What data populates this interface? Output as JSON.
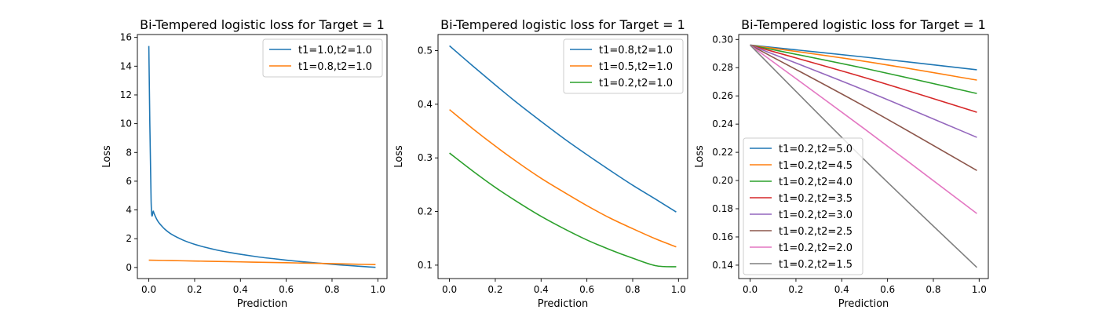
{
  "palette": [
    "#1f77b4",
    "#ff7f0e",
    "#2ca02c",
    "#d62728",
    "#9467bd",
    "#8c564b",
    "#e377c2",
    "#7f7f7f"
  ],
  "chart_data": [
    {
      "type": "line",
      "title": "Bi-Tempered logistic loss for Target = 1",
      "xlabel": "Prediction",
      "ylabel": "Loss",
      "xlim": [
        -0.05,
        1.04
      ],
      "ylim": [
        -0.77,
        16.2
      ],
      "xticks": [
        0.0,
        0.2,
        0.4,
        0.6,
        0.8,
        1.0
      ],
      "xtick_labels": [
        "0.0",
        "0.2",
        "0.4",
        "0.6",
        "0.8",
        "1.0"
      ],
      "yticks": [
        0,
        2,
        4,
        6,
        8,
        10,
        12,
        14,
        16
      ],
      "ytick_labels": [
        "0",
        "2",
        "4",
        "6",
        "8",
        "10",
        "12",
        "14",
        "16"
      ],
      "legend_position": "upper-right",
      "grid": false,
      "series": [
        {
          "name": "t1=1.0,t2=1.0",
          "color": "#1f77b4",
          "x": [
            0.0,
            0.01,
            0.02,
            0.03,
            0.04,
            0.05,
            0.07,
            0.1,
            0.15,
            0.2,
            0.25,
            0.3,
            0.35,
            0.4,
            0.45,
            0.5,
            0.55,
            0.6,
            0.65,
            0.7,
            0.75,
            0.8,
            0.85,
            0.9,
            0.95,
            0.99
          ],
          "y": [
            15.4,
            4.6,
            3.9,
            3.5,
            3.2,
            3.0,
            2.66,
            2.3,
            1.9,
            1.61,
            1.39,
            1.2,
            1.05,
            0.92,
            0.8,
            0.69,
            0.6,
            0.51,
            0.43,
            0.36,
            0.29,
            0.22,
            0.16,
            0.105,
            0.05,
            0.01
          ]
        },
        {
          "name": "t1=0.8,t2=1.0",
          "color": "#ff7f0e",
          "x": [
            0.0,
            0.1,
            0.2,
            0.3,
            0.4,
            0.5,
            0.6,
            0.7,
            0.8,
            0.9,
            0.99
          ],
          "y": [
            0.51,
            0.48,
            0.45,
            0.42,
            0.39,
            0.36,
            0.33,
            0.3,
            0.27,
            0.23,
            0.2
          ]
        }
      ]
    },
    {
      "type": "line",
      "title": "Bi-Tempered logistic loss for Target = 1",
      "xlabel": "Prediction",
      "ylabel": "Loss",
      "xlim": [
        -0.05,
        1.04
      ],
      "ylim": [
        0.075,
        0.53
      ],
      "xticks": [
        0.0,
        0.2,
        0.4,
        0.6,
        0.8,
        1.0
      ],
      "xtick_labels": [
        "0.0",
        "0.2",
        "0.4",
        "0.6",
        "0.8",
        "1.0"
      ],
      "yticks": [
        0.1,
        0.2,
        0.3,
        0.4,
        0.5
      ],
      "ytick_labels": [
        "0.1",
        "0.2",
        "0.3",
        "0.4",
        "0.5"
      ],
      "legend_position": "upper-right",
      "grid": false,
      "series": [
        {
          "name": "t1=0.8,t2=1.0",
          "color": "#1f77b4",
          "x": [
            0.0,
            0.1,
            0.2,
            0.3,
            0.4,
            0.5,
            0.6,
            0.7,
            0.8,
            0.9,
            0.99
          ],
          "y": [
            0.509,
            0.472,
            0.436,
            0.401,
            0.368,
            0.336,
            0.306,
            0.277,
            0.249,
            0.223,
            0.199
          ]
        },
        {
          "name": "t1=0.5,t2=1.0",
          "color": "#ff7f0e",
          "x": [
            0.0,
            0.1,
            0.2,
            0.3,
            0.4,
            0.5,
            0.6,
            0.7,
            0.8,
            0.9,
            0.99
          ],
          "y": [
            0.39,
            0.355,
            0.322,
            0.291,
            0.262,
            0.236,
            0.211,
            0.188,
            0.168,
            0.149,
            0.134
          ]
        },
        {
          "name": "t1=0.2,t2=1.0",
          "color": "#2ca02c",
          "x": [
            0.0,
            0.1,
            0.2,
            0.3,
            0.4,
            0.5,
            0.6,
            0.7,
            0.8,
            0.9,
            0.99
          ],
          "y": [
            0.309,
            0.276,
            0.245,
            0.217,
            0.191,
            0.168,
            0.147,
            0.129,
            0.113,
            0.099,
            0.097
          ]
        }
      ]
    },
    {
      "type": "line",
      "title": "Bi-Tempered logistic loss for Target = 1",
      "xlabel": "Prediction",
      "ylabel": "Loss",
      "xlim": [
        -0.05,
        1.04
      ],
      "ylim": [
        0.1305,
        0.3035
      ],
      "xticks": [
        0.0,
        0.2,
        0.4,
        0.6,
        0.8,
        1.0
      ],
      "xtick_labels": [
        "0.0",
        "0.2",
        "0.4",
        "0.6",
        "0.8",
        "1.0"
      ],
      "yticks": [
        0.14,
        0.16,
        0.18,
        0.2,
        0.22,
        0.24,
        0.26,
        0.28,
        0.3
      ],
      "ytick_labels": [
        "0.14",
        "0.16",
        "0.18",
        "0.20",
        "0.22",
        "0.24",
        "0.26",
        "0.28",
        "0.30"
      ],
      "legend_position": "lower-left",
      "grid": false,
      "series": [
        {
          "name": "t1=0.2,t2=5.0",
          "color": "#1f77b4",
          "x": [
            0.0,
            0.5,
            0.99
          ],
          "y": [
            0.296,
            0.2875,
            0.2785
          ]
        },
        {
          "name": "t1=0.2,t2=4.5",
          "color": "#ff7f0e",
          "x": [
            0.0,
            0.5,
            0.99
          ],
          "y": [
            0.296,
            0.2845,
            0.2712
          ]
        },
        {
          "name": "t1=0.2,t2=4.0",
          "color": "#2ca02c",
          "x": [
            0.0,
            0.5,
            0.99
          ],
          "y": [
            0.296,
            0.2795,
            0.2617
          ]
        },
        {
          "name": "t1=0.2,t2=3.5",
          "color": "#d62728",
          "x": [
            0.0,
            0.5,
            0.99
          ],
          "y": [
            0.296,
            0.273,
            0.2484
          ]
        },
        {
          "name": "t1=0.2,t2=3.0",
          "color": "#9467bd",
          "x": [
            0.0,
            0.5,
            0.99
          ],
          "y": [
            0.296,
            0.264,
            0.2306
          ]
        },
        {
          "name": "t1=0.2,t2=2.5",
          "color": "#8c564b",
          "x": [
            0.0,
            0.5,
            0.99
          ],
          "y": [
            0.296,
            0.2525,
            0.2071
          ]
        },
        {
          "name": "t1=0.2,t2=2.0",
          "color": "#e377c2",
          "x": [
            0.0,
            0.5,
            0.99
          ],
          "y": [
            0.296,
            0.2365,
            0.1766
          ]
        },
        {
          "name": "t1=0.2,t2=1.5",
          "color": "#7f7f7f",
          "x": [
            0.0,
            0.5,
            0.99
          ],
          "y": [
            0.296,
            0.2145,
            0.1384
          ]
        }
      ]
    }
  ]
}
